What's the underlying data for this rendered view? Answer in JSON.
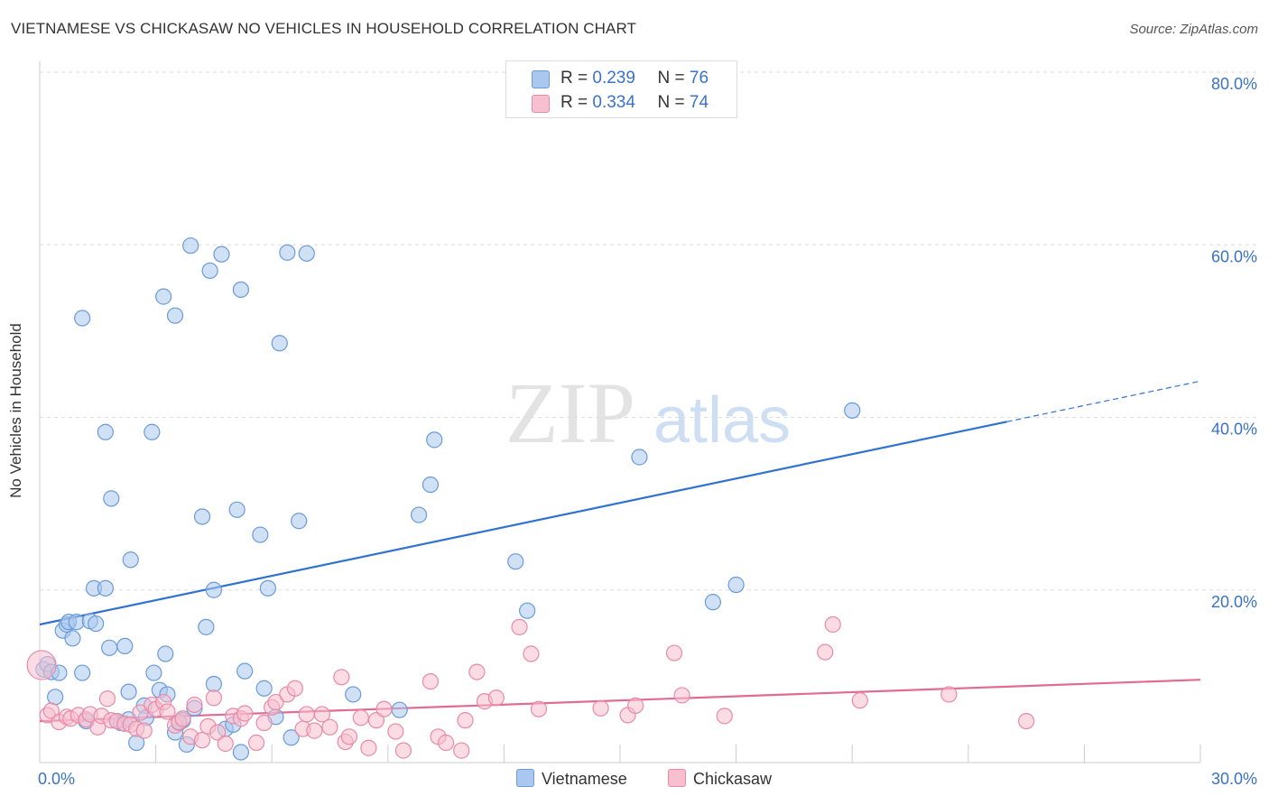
{
  "header": {
    "title": "VIETNAMESE VS CHICKASAW NO VEHICLES IN HOUSEHOLD CORRELATION CHART",
    "source": "Source: ZipAtlas.com"
  },
  "watermark": {
    "zip": "ZIP",
    "atlas": "atlas"
  },
  "legend": {
    "r_label": "R =",
    "n_label": "N =",
    "series": [
      {
        "name": "Vietnamese",
        "r": "0.239",
        "n": "76"
      },
      {
        "name": "Chickasaw",
        "r": "0.334",
        "n": "74"
      }
    ]
  },
  "chart_data": {
    "type": "scatter",
    "title": "VIETNAMESE VS CHICKASAW NO VEHICLES IN HOUSEHOLD CORRELATION CHART",
    "xlabel": "",
    "ylabel": "No Vehicles in Household",
    "xlim": [
      0,
      30
    ],
    "ylim": [
      0,
      80
    ],
    "x_tick_labels": [
      "0.0%",
      "30.0%"
    ],
    "y_ticks": [
      20,
      40,
      60,
      80
    ],
    "y_tick_labels": [
      "20.0%",
      "40.0%",
      "60.0%",
      "80.0%"
    ],
    "grid": true,
    "colors": {
      "Vietnamese": {
        "fill": "#aac8ef",
        "stroke": "#6a9bd8",
        "line": "#3072cf"
      },
      "Chickasaw": {
        "fill": "#f7bfd0",
        "stroke": "#e88aa7",
        "line": "#e06b93"
      },
      "axis_text": "#3a72c9"
    },
    "series": [
      {
        "name": "Vietnamese",
        "points": [
          [
            0.1,
            10.8
          ],
          [
            0.2,
            11.4
          ],
          [
            0.3,
            10.5
          ],
          [
            0.4,
            7.6
          ],
          [
            0.5,
            10.4
          ],
          [
            0.6,
            15.3
          ],
          [
            0.7,
            16.0
          ],
          [
            0.75,
            16.3
          ],
          [
            0.85,
            14.4
          ],
          [
            0.95,
            16.3
          ],
          [
            1.1,
            51.5
          ],
          [
            1.1,
            10.4
          ],
          [
            1.2,
            4.8
          ],
          [
            1.3,
            16.4
          ],
          [
            1.4,
            20.2
          ],
          [
            1.45,
            16.1
          ],
          [
            1.7,
            20.2
          ],
          [
            1.7,
            38.3
          ],
          [
            1.8,
            13.3
          ],
          [
            1.85,
            30.6
          ],
          [
            2.0,
            4.8
          ],
          [
            2.1,
            4.6
          ],
          [
            2.2,
            13.5
          ],
          [
            2.3,
            5.0
          ],
          [
            2.3,
            8.2
          ],
          [
            2.35,
            23.5
          ],
          [
            2.5,
            2.3
          ],
          [
            2.7,
            6.6
          ],
          [
            2.75,
            5.2
          ],
          [
            2.9,
            38.3
          ],
          [
            2.95,
            10.4
          ],
          [
            3.1,
            8.4
          ],
          [
            3.2,
            54.0
          ],
          [
            3.25,
            12.6
          ],
          [
            3.3,
            7.9
          ],
          [
            3.5,
            3.5
          ],
          [
            3.5,
            51.8
          ],
          [
            3.6,
            4.6
          ],
          [
            3.7,
            4.9
          ],
          [
            3.8,
            2.1
          ],
          [
            3.9,
            59.9
          ],
          [
            4.0,
            6.3
          ],
          [
            4.2,
            28.5
          ],
          [
            4.3,
            15.7
          ],
          [
            4.4,
            57.0
          ],
          [
            4.5,
            20.0
          ],
          [
            4.5,
            9.1
          ],
          [
            4.7,
            58.9
          ],
          [
            4.8,
            3.9
          ],
          [
            5.0,
            4.4
          ],
          [
            5.1,
            29.3
          ],
          [
            5.2,
            54.8
          ],
          [
            5.2,
            1.2
          ],
          [
            5.3,
            10.6
          ],
          [
            5.7,
            26.4
          ],
          [
            5.8,
            8.6
          ],
          [
            5.9,
            20.2
          ],
          [
            6.1,
            5.3
          ],
          [
            6.2,
            48.6
          ],
          [
            6.4,
            59.1
          ],
          [
            6.5,
            2.9
          ],
          [
            6.7,
            28.0
          ],
          [
            6.9,
            59.0
          ],
          [
            8.1,
            7.9
          ],
          [
            9.3,
            6.1
          ],
          [
            9.8,
            28.7
          ],
          [
            10.1,
            32.2
          ],
          [
            10.2,
            37.4
          ],
          [
            12.3,
            23.3
          ],
          [
            12.6,
            17.6
          ],
          [
            15.5,
            35.4
          ],
          [
            17.4,
            18.6
          ],
          [
            18.0,
            20.6
          ],
          [
            21.0,
            40.8
          ]
        ],
        "trend": {
          "x": [
            0,
            25
          ],
          "y": [
            16.0,
            39.5
          ],
          "extrapolated_x": [
            25,
            30
          ],
          "extrapolated_y": [
            39.5,
            44.2
          ]
        }
      },
      {
        "name": "Chickasaw",
        "points": [
          [
            0.05,
            11.3
          ],
          [
            0.2,
            5.5
          ],
          [
            0.3,
            6.0
          ],
          [
            0.5,
            4.7
          ],
          [
            0.7,
            5.3
          ],
          [
            0.8,
            5.1
          ],
          [
            1.0,
            5.5
          ],
          [
            1.2,
            5.0
          ],
          [
            1.3,
            5.6
          ],
          [
            1.5,
            4.1
          ],
          [
            1.6,
            5.4
          ],
          [
            1.75,
            7.4
          ],
          [
            1.85,
            4.9
          ],
          [
            2.0,
            4.8
          ],
          [
            2.2,
            4.5
          ],
          [
            2.35,
            4.4
          ],
          [
            2.5,
            3.9
          ],
          [
            2.6,
            5.8
          ],
          [
            2.7,
            3.7
          ],
          [
            2.9,
            6.7
          ],
          [
            3.0,
            6.2
          ],
          [
            3.2,
            7.0
          ],
          [
            3.3,
            5.9
          ],
          [
            3.5,
            4.3
          ],
          [
            3.6,
            4.7
          ],
          [
            3.7,
            5.1
          ],
          [
            3.9,
            3.0
          ],
          [
            4.0,
            6.7
          ],
          [
            4.2,
            2.6
          ],
          [
            4.35,
            4.2
          ],
          [
            4.5,
            7.5
          ],
          [
            4.6,
            3.5
          ],
          [
            4.8,
            2.2
          ],
          [
            5.0,
            5.4
          ],
          [
            5.2,
            5.1
          ],
          [
            5.3,
            5.7
          ],
          [
            5.6,
            2.3
          ],
          [
            5.8,
            4.6
          ],
          [
            6.0,
            6.4
          ],
          [
            6.1,
            7.0
          ],
          [
            6.4,
            7.9
          ],
          [
            6.6,
            8.6
          ],
          [
            6.8,
            3.9
          ],
          [
            6.9,
            5.6
          ],
          [
            7.1,
            3.7
          ],
          [
            7.3,
            5.6
          ],
          [
            7.5,
            4.1
          ],
          [
            7.8,
            9.9
          ],
          [
            7.9,
            2.4
          ],
          [
            8.0,
            3.0
          ],
          [
            8.3,
            5.2
          ],
          [
            8.5,
            1.7
          ],
          [
            8.7,
            4.9
          ],
          [
            8.9,
            6.2
          ],
          [
            9.2,
            3.6
          ],
          [
            9.4,
            1.4
          ],
          [
            10.1,
            9.4
          ],
          [
            10.3,
            3.0
          ],
          [
            10.5,
            2.3
          ],
          [
            10.9,
            1.4
          ],
          [
            11.0,
            4.9
          ],
          [
            11.3,
            10.5
          ],
          [
            11.5,
            7.1
          ],
          [
            11.8,
            7.5
          ],
          [
            12.4,
            15.7
          ],
          [
            12.7,
            12.6
          ],
          [
            12.9,
            6.2
          ],
          [
            14.5,
            6.3
          ],
          [
            15.2,
            5.5
          ],
          [
            15.4,
            6.6
          ],
          [
            16.4,
            12.7
          ],
          [
            16.6,
            7.8
          ],
          [
            17.7,
            5.4
          ],
          [
            20.3,
            12.8
          ],
          [
            20.5,
            16.0
          ],
          [
            21.2,
            7.2
          ],
          [
            23.5,
            7.9
          ],
          [
            25.5,
            4.8
          ]
        ],
        "trend": {
          "x": [
            0,
            30
          ],
          "y": [
            4.8,
            9.6
          ]
        }
      }
    ]
  }
}
